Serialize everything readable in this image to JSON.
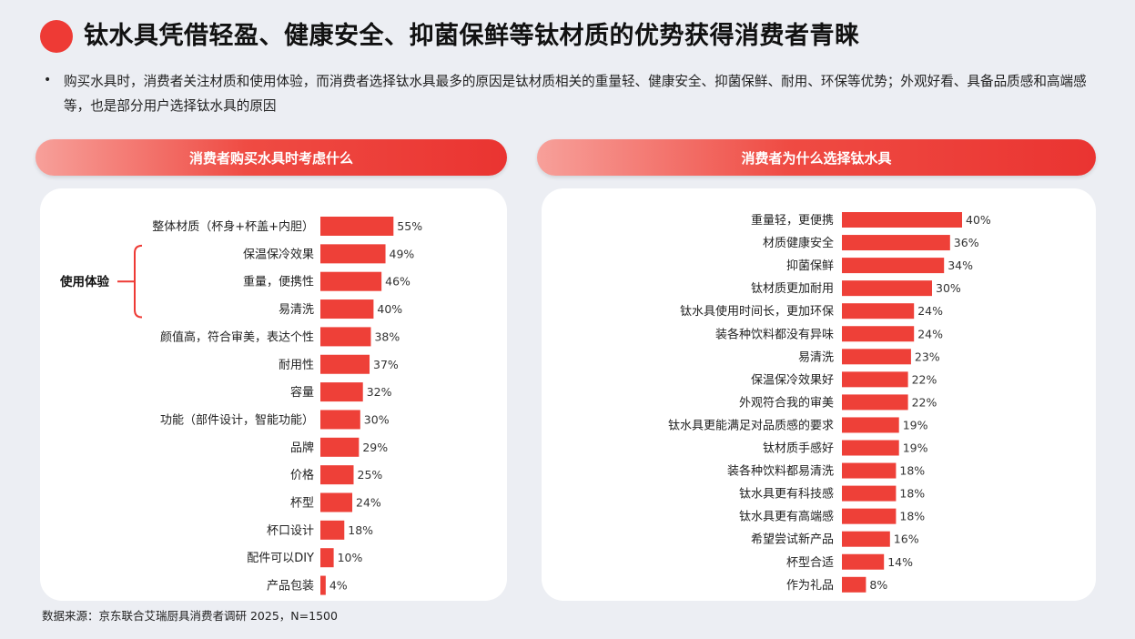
{
  "header": {
    "title": "钛水具凭借轻盈、健康安全、抑菌保鲜等钛材质的优势获得消费者青睐",
    "bullet": "购买水具时，消费者关注材质和使用体验，而消费者选择钛水具最多的原因是钛材质相关的重量轻、健康安全、抑菌保鲜、耐用、环保等优势；外观好看、具备品质感和高端感等，也是部分用户选择钛水具的原因"
  },
  "colors": {
    "accent": "#ee3a35",
    "bar": "#ee4038"
  },
  "left_panel": {
    "heading": "消费者购买水具时考虑什么",
    "bracket_label": "使用体验"
  },
  "right_panel": {
    "heading": "消费者为什么选择钛水具"
  },
  "footer": {
    "source": "数据来源：京东联合艾瑞厨具消费者调研 2025，N=1500"
  },
  "chart_data": [
    {
      "type": "bar",
      "orientation": "horizontal",
      "title": "消费者购买水具时考虑什么",
      "categories": [
        "整体材质（杯身+杯盖+内胆）",
        "保温保冷效果",
        "重量，便携性",
        "易清洗",
        "颜值高，符合审美，表达个性",
        "耐用性",
        "容量",
        "功能（部件设计，智能功能）",
        "品牌",
        "价格",
        "杯型",
        "杯口设计",
        "配件可以DIY",
        "产品包装"
      ],
      "values": [
        55,
        49,
        46,
        40,
        38,
        37,
        32,
        30,
        29,
        25,
        24,
        18,
        10,
        4
      ],
      "value_suffix": "%",
      "xlim": [
        0,
        100
      ],
      "grid": false
    },
    {
      "type": "bar",
      "orientation": "horizontal",
      "title": "消费者为什么选择钛水具",
      "categories": [
        "重量轻，更便携",
        "材质健康安全",
        "抑菌保鲜",
        "钛材质更加耐用",
        "钛水具使用时间长，更加环保",
        "装各种饮料都没有异味",
        "易清洗",
        "保温保冷效果好",
        "外观符合我的审美",
        "钛水具更能满足对品质感的要求",
        "钛材质手感好",
        "装各种饮料都易清洗",
        "钛水具更有科技感",
        "钛水具更有高端感",
        "希望尝试新产品",
        "杯型合适",
        "作为礼品"
      ],
      "values": [
        40,
        36,
        34,
        30,
        24,
        24,
        23,
        22,
        22,
        19,
        19,
        18,
        18,
        18,
        16,
        14,
        8
      ],
      "value_suffix": "%",
      "xlim": [
        0,
        100
      ],
      "grid": false
    }
  ]
}
